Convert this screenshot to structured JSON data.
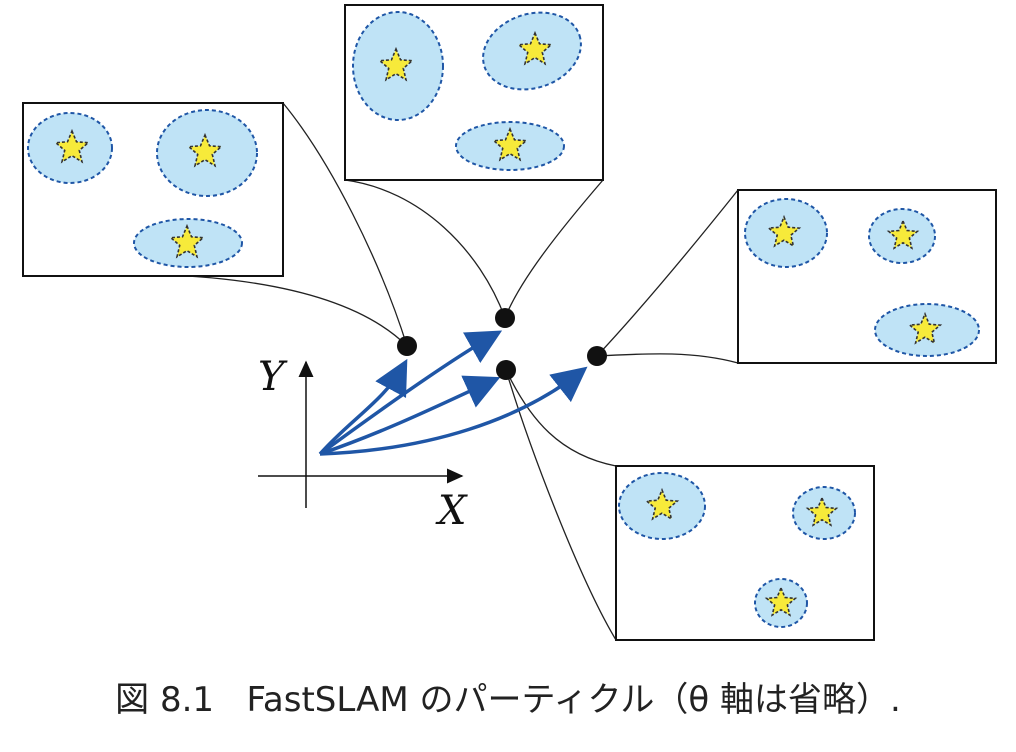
{
  "diagram": {
    "axes": {
      "x_label": "X",
      "y_label": "Y"
    },
    "colors": {
      "ellipse_fill": "#bfe3f6",
      "ellipse_stroke": "#1f56a6",
      "star_fill": "#f7ea3a",
      "arrow": "#1f56a6",
      "particle": "#111111",
      "box_stroke": "#111111"
    },
    "particles_count": 4,
    "maps": [
      {
        "name": "top-left-map",
        "landmarks": 3
      },
      {
        "name": "top-center-map",
        "landmarks": 3
      },
      {
        "name": "right-map",
        "landmarks": 3
      },
      {
        "name": "bottom-right-map",
        "landmarks": 3
      }
    ]
  },
  "caption": {
    "prefix": "図 8.1",
    "text": "FastSLAM のパーティクル（θ 軸は省略）."
  }
}
